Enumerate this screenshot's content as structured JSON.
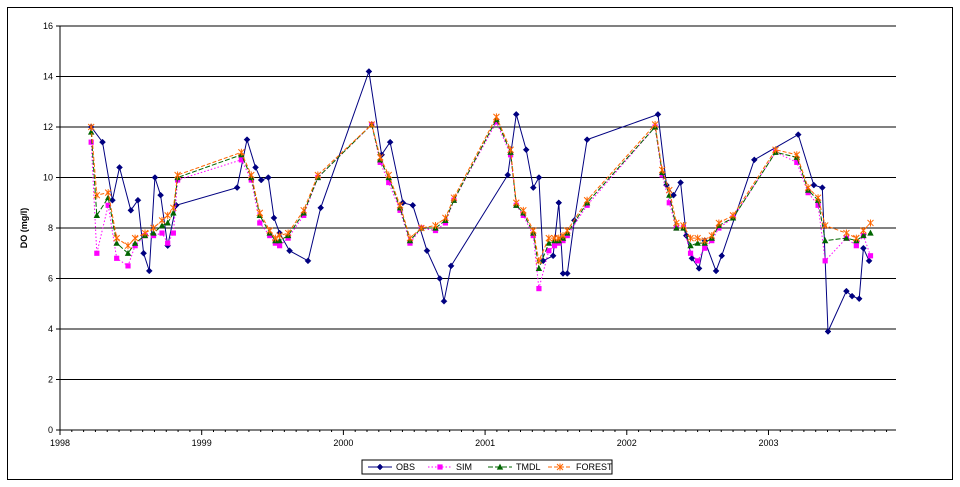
{
  "chart_data": {
    "type": "line",
    "title": "",
    "xlabel": "",
    "ylabel": "DO (mg/l)",
    "xlim": [
      1998.0,
      2003.9
    ],
    "ylim": [
      0,
      16
    ],
    "x_ticks": [
      "1998",
      "1999",
      "2000",
      "2001",
      "2002",
      "2003"
    ],
    "y_ticks": [
      "0",
      "2",
      "4",
      "6",
      "8",
      "10",
      "12",
      "14",
      "16"
    ],
    "grid": "horizontal",
    "legend": "bottom",
    "series": [
      {
        "name": "OBS",
        "color": "#000080",
        "marker": "diamond",
        "x": [
          1998.22,
          1998.3,
          1998.37,
          1998.42,
          1998.5,
          1998.55,
          1998.59,
          1998.63,
          1998.67,
          1998.71,
          1998.76,
          1998.82,
          1999.25,
          1999.32,
          1999.38,
          1999.42,
          1999.47,
          1999.51,
          1999.55,
          1999.62,
          1999.75,
          1999.84,
          2000.18,
          2000.27,
          2000.33,
          2000.42,
          2000.49,
          2000.59,
          2000.68,
          2000.71,
          2000.76,
          2001.16,
          2001.22,
          2001.29,
          2001.34,
          2001.38,
          2001.41,
          2001.48,
          2001.52,
          2001.55,
          2001.58,
          2001.63,
          2001.72,
          2002.22,
          2002.28,
          2002.33,
          2002.38,
          2002.42,
          2002.46,
          2002.51,
          2002.55,
          2002.63,
          2002.67,
          2002.9,
          2003.21,
          2003.32,
          2003.38,
          2003.42,
          2003.55,
          2003.59,
          2003.64,
          2003.67,
          2003.71
        ],
        "values": [
          12.0,
          11.4,
          9.1,
          10.4,
          8.7,
          9.1,
          7.0,
          6.3,
          10.0,
          9.3,
          7.3,
          8.9,
          9.6,
          11.5,
          10.4,
          9.9,
          10.0,
          8.4,
          7.8,
          7.1,
          6.7,
          8.8,
          14.2,
          10.9,
          11.4,
          9.0,
          8.9,
          7.1,
          6.0,
          5.1,
          6.5,
          10.1,
          12.5,
          11.1,
          9.6,
          10.0,
          6.7,
          6.9,
          9.0,
          6.2,
          6.2,
          8.3,
          11.5,
          12.5,
          9.7,
          9.3,
          9.8,
          7.7,
          6.8,
          6.4,
          7.5,
          6.3,
          6.9,
          10.7,
          11.7,
          9.7,
          9.6,
          3.9,
          5.5,
          5.3,
          5.2,
          7.2,
          6.7
        ]
      },
      {
        "name": "SIM",
        "color": "#FF00FF",
        "marker": "square",
        "x": [
          1998.22,
          1998.26,
          1998.34,
          1998.4,
          1998.48,
          1998.53,
          1998.6,
          1998.66,
          1998.72,
          1998.76,
          1998.8,
          1998.83,
          1999.28,
          1999.35,
          1999.41,
          1999.48,
          1999.52,
          1999.55,
          1999.61,
          1999.72,
          1999.82,
          2000.2,
          2000.26,
          2000.32,
          2000.4,
          2000.47,
          2000.55,
          2000.65,
          2000.72,
          2000.78,
          2001.08,
          2001.18,
          2001.22,
          2001.27,
          2001.34,
          2001.38,
          2001.45,
          2001.49,
          2001.52,
          2001.55,
          2001.58,
          2001.72,
          2002.2,
          2002.25,
          2002.3,
          2002.35,
          2002.4,
          2002.45,
          2002.5,
          2002.55,
          2002.6,
          2002.65,
          2002.75,
          2003.05,
          2003.2,
          2003.28,
          2003.35,
          2003.4,
          2003.55,
          2003.62,
          2003.67,
          2003.72
        ],
        "values": [
          11.4,
          7.0,
          8.9,
          6.8,
          6.5,
          7.3,
          7.7,
          7.7,
          7.8,
          7.4,
          7.8,
          9.9,
          10.7,
          9.9,
          8.2,
          7.7,
          7.4,
          7.3,
          7.6,
          8.5,
          10.0,
          12.1,
          10.6,
          9.8,
          8.7,
          7.4,
          8.0,
          7.9,
          8.2,
          9.1,
          12.2,
          10.9,
          8.9,
          8.5,
          7.7,
          5.6,
          7.1,
          7.3,
          7.4,
          7.5,
          7.7,
          8.9,
          12.0,
          10.1,
          9.0,
          8.0,
          8.0,
          7.0,
          6.7,
          7.2,
          7.5,
          8.0,
          8.4,
          11.0,
          10.6,
          9.4,
          8.9,
          6.7,
          7.6,
          7.3,
          7.7,
          6.9
        ]
      },
      {
        "name": "TMDL",
        "color": "#006600",
        "marker": "triangle",
        "x": [
          1998.22,
          1998.26,
          1998.34,
          1998.4,
          1998.48,
          1998.53,
          1998.6,
          1998.66,
          1998.72,
          1998.76,
          1998.8,
          1998.83,
          1999.28,
          1999.35,
          1999.41,
          1999.48,
          1999.52,
          1999.55,
          1999.61,
          1999.72,
          1999.82,
          2000.2,
          2000.26,
          2000.32,
          2000.4,
          2000.47,
          2000.55,
          2000.65,
          2000.72,
          2000.78,
          2001.08,
          2001.18,
          2001.22,
          2001.27,
          2001.34,
          2001.38,
          2001.45,
          2001.49,
          2001.52,
          2001.55,
          2001.58,
          2001.72,
          2002.2,
          2002.25,
          2002.3,
          2002.35,
          2002.4,
          2002.45,
          2002.5,
          2002.55,
          2002.6,
          2002.65,
          2002.75,
          2003.05,
          2003.2,
          2003.28,
          2003.35,
          2003.4,
          2003.55,
          2003.62,
          2003.67,
          2003.72
        ],
        "values": [
          11.8,
          8.5,
          9.2,
          7.4,
          7.0,
          7.4,
          7.7,
          7.8,
          8.1,
          8.2,
          8.6,
          10.0,
          10.9,
          10.0,
          8.5,
          7.8,
          7.5,
          7.5,
          7.7,
          8.6,
          10.0,
          12.1,
          10.7,
          10.0,
          8.8,
          7.5,
          8.0,
          8.0,
          8.3,
          9.1,
          12.3,
          11.0,
          8.9,
          8.6,
          7.8,
          6.4,
          7.4,
          7.5,
          7.5,
          7.6,
          7.8,
          9.0,
          12.0,
          10.2,
          9.3,
          8.0,
          8.0,
          7.3,
          7.4,
          7.4,
          7.6,
          8.1,
          8.4,
          11.0,
          10.8,
          9.5,
          9.1,
          7.5,
          7.6,
          7.5,
          7.7,
          7.8
        ]
      },
      {
        "name": "FOREST",
        "color": "#FF6600",
        "marker": "star",
        "x": [
          1998.22,
          1998.26,
          1998.34,
          1998.4,
          1998.48,
          1998.53,
          1998.6,
          1998.66,
          1998.72,
          1998.76,
          1998.8,
          1998.83,
          1999.28,
          1999.35,
          1999.41,
          1999.48,
          1999.52,
          1999.55,
          1999.61,
          1999.72,
          1999.82,
          2000.2,
          2000.26,
          2000.32,
          2000.4,
          2000.47,
          2000.55,
          2000.65,
          2000.72,
          2000.78,
          2001.08,
          2001.18,
          2001.22,
          2001.27,
          2001.34,
          2001.38,
          2001.45,
          2001.49,
          2001.52,
          2001.55,
          2001.58,
          2001.72,
          2002.2,
          2002.25,
          2002.3,
          2002.35,
          2002.4,
          2002.45,
          2002.5,
          2002.55,
          2002.6,
          2002.65,
          2002.75,
          2003.05,
          2003.2,
          2003.28,
          2003.35,
          2003.4,
          2003.55,
          2003.62,
          2003.67,
          2003.72
        ],
        "values": [
          12.0,
          9.3,
          9.4,
          7.6,
          7.3,
          7.6,
          7.8,
          8.0,
          8.3,
          8.5,
          8.8,
          10.1,
          11.0,
          10.1,
          8.6,
          7.9,
          7.6,
          7.7,
          7.8,
          8.7,
          10.1,
          12.1,
          10.8,
          10.1,
          8.9,
          7.6,
          8.0,
          8.1,
          8.4,
          9.2,
          12.4,
          11.1,
          9.0,
          8.7,
          7.9,
          6.7,
          7.6,
          7.6,
          7.6,
          7.7,
          7.9,
          9.1,
          12.1,
          10.3,
          9.5,
          8.2,
          8.1,
          7.6,
          7.6,
          7.5,
          7.7,
          8.2,
          8.5,
          11.1,
          10.9,
          9.6,
          9.2,
          8.1,
          7.8,
          7.6,
          7.9,
          8.2
        ]
      }
    ]
  }
}
